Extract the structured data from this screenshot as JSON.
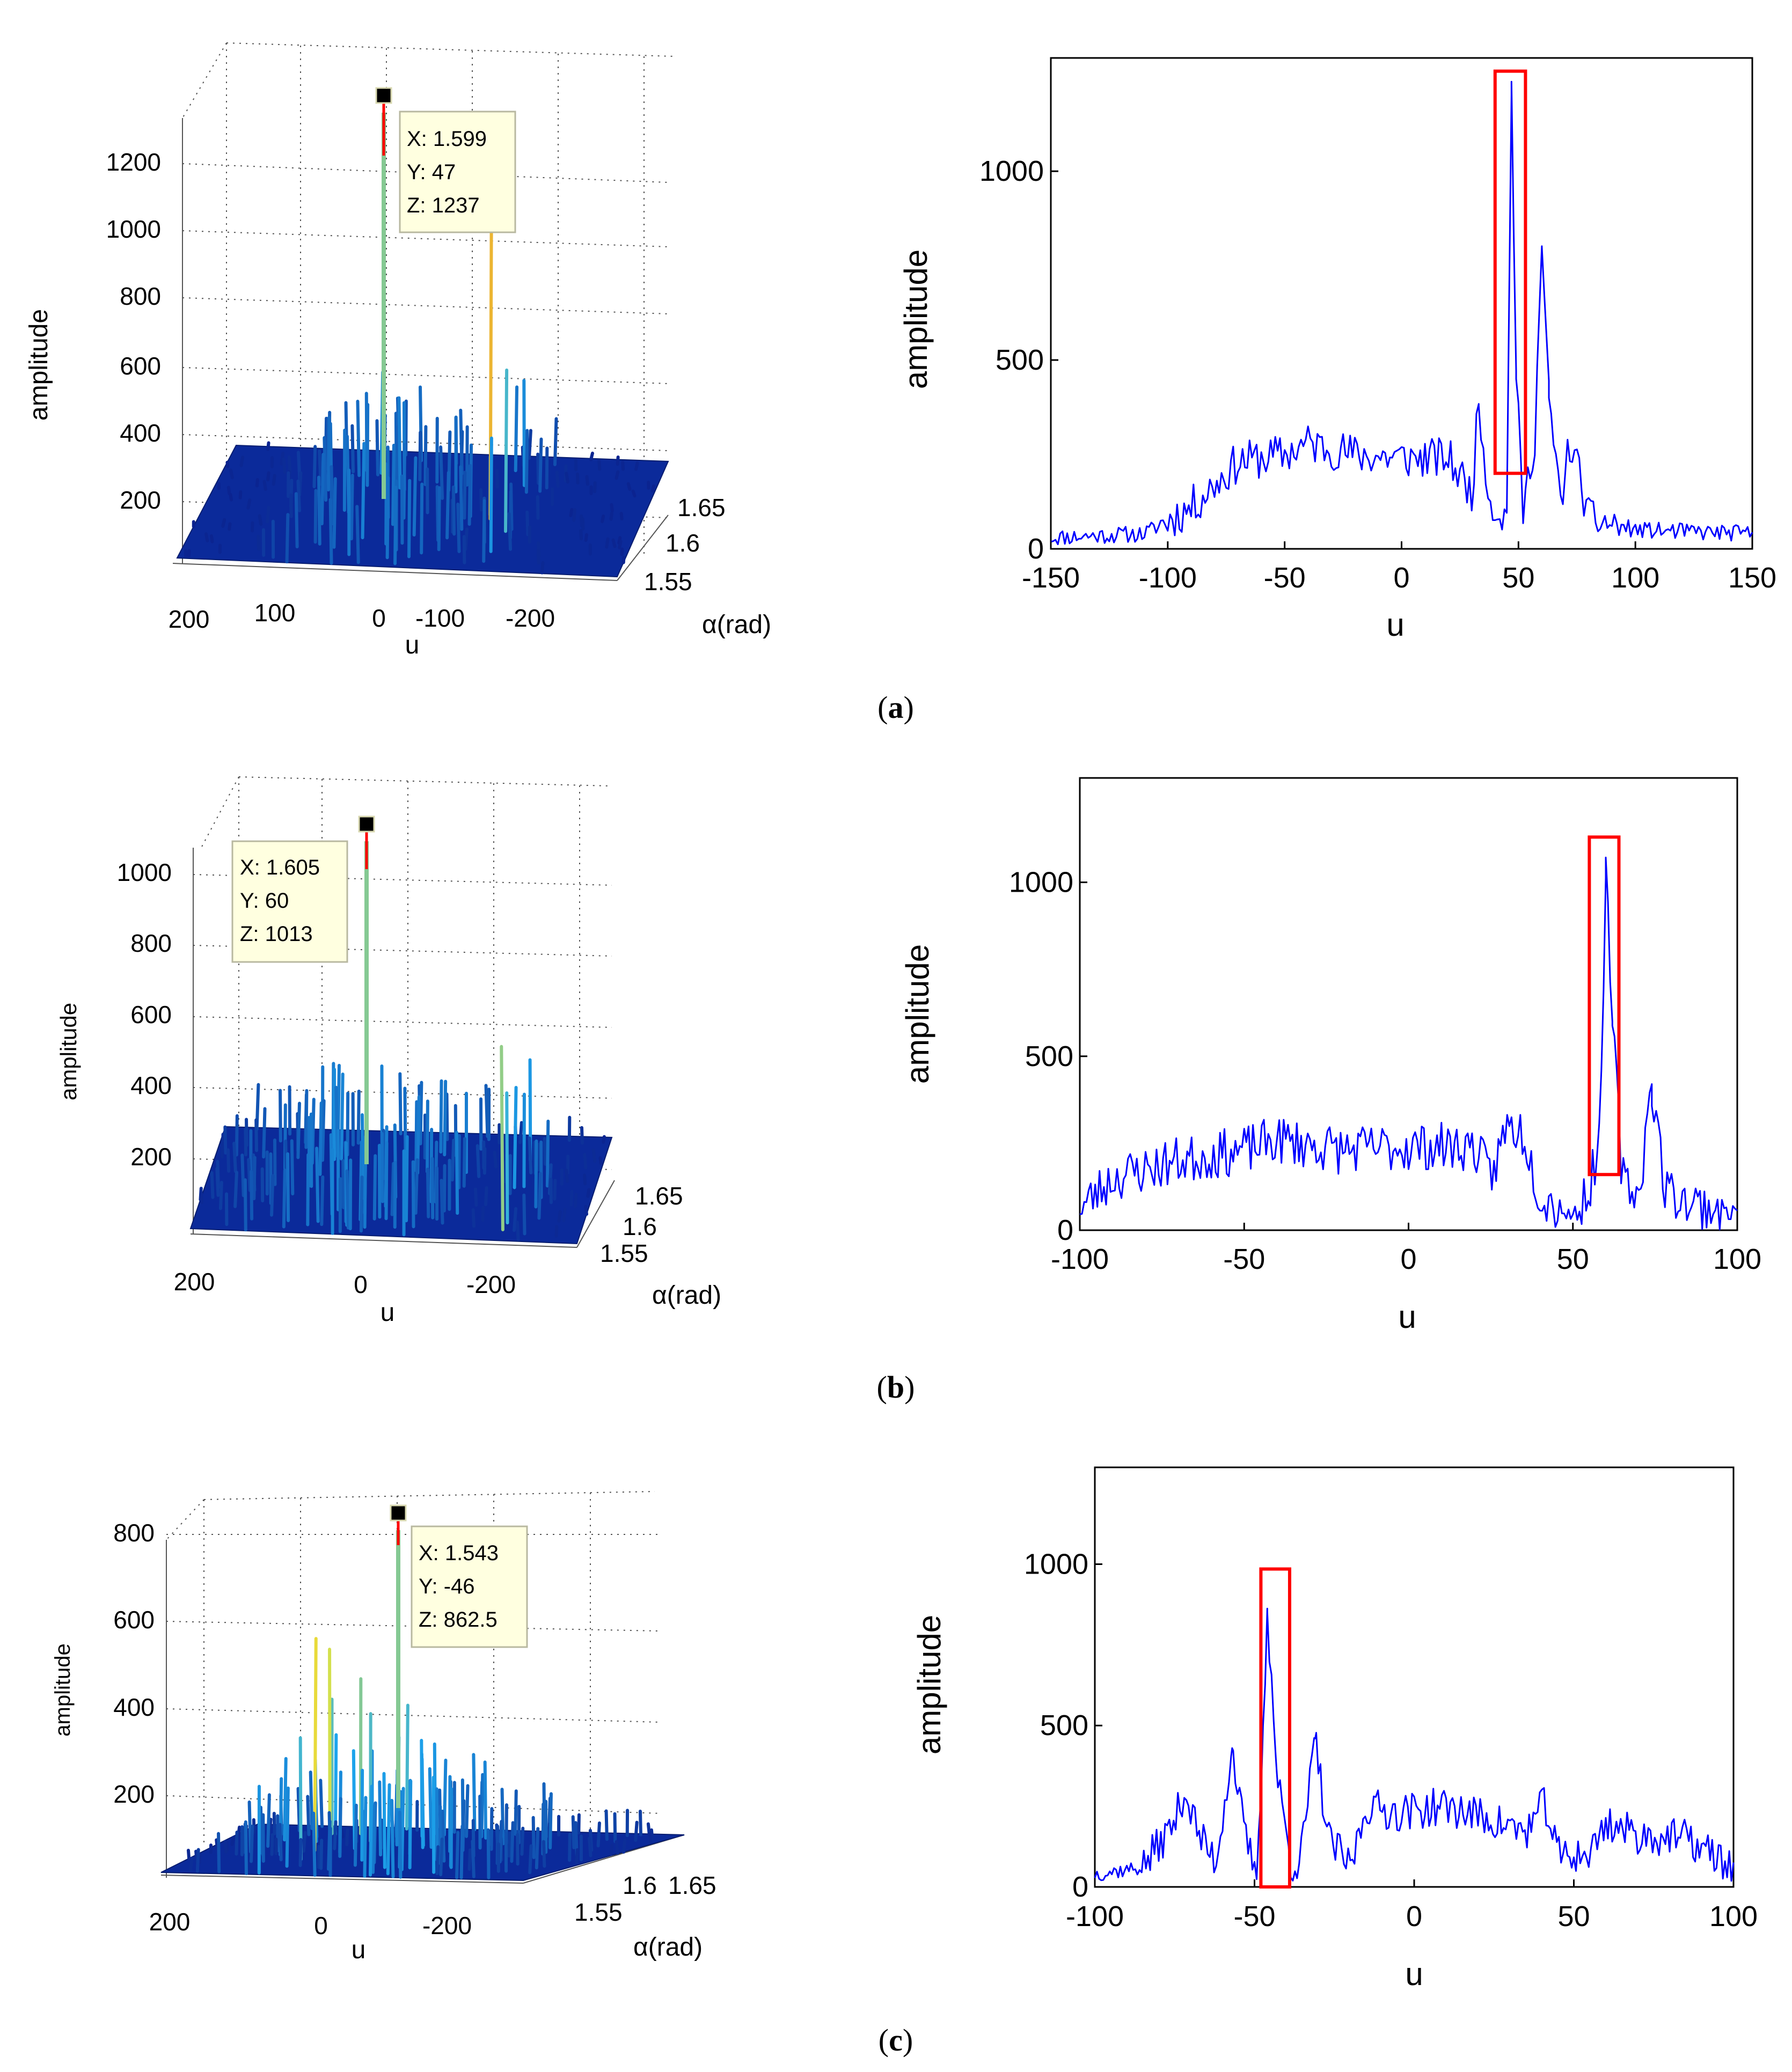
{
  "panels": [
    {
      "caption_letter": "a",
      "surface": {
        "type": "surface3d",
        "zlabel": "amplitude",
        "xlabel": "u",
        "ylabel": "α(rad)",
        "zticks": [
          "1200",
          "1000",
          "800",
          "600",
          "400",
          "200"
        ],
        "uticks": [
          "200",
          "100",
          "0",
          "-100",
          "-200"
        ],
        "alphaticks": [
          "1.65",
          "1.6",
          "1.55"
        ],
        "datatip": {
          "x": "X: 1.599",
          "y": "Y: 47",
          "z": "Z: 1237"
        },
        "peak_z": 1237,
        "zmax": 1300
      },
      "profile": {
        "type": "line",
        "xlabel": "u",
        "ylabel": "amplitude",
        "xlim": [
          -150,
          150
        ],
        "ylim": [
          0,
          1300
        ],
        "xticks": [
          "-150",
          "-100",
          "-50",
          "0",
          "50",
          "100",
          "150"
        ],
        "yticks": [
          "0",
          "500",
          "1000"
        ],
        "line_color": "#0000ff",
        "highlight_color": "#ff0000",
        "highlight": {
          "u0": 40,
          "u1": 53,
          "a0": 200,
          "a1": 1265
        },
        "envelope": [
          [
            -150,
            30
          ],
          [
            -110,
            40
          ],
          [
            -90,
            110
          ],
          [
            -70,
            230
          ],
          [
            -50,
            250
          ],
          [
            -40,
            280
          ],
          [
            -20,
            250
          ],
          [
            0,
            240
          ],
          [
            20,
            240
          ],
          [
            30,
            150
          ],
          [
            33,
            380
          ],
          [
            38,
            120
          ],
          [
            45,
            80
          ],
          [
            47,
            1237
          ],
          [
            49,
            450
          ],
          [
            52,
            100
          ],
          [
            57,
            300
          ],
          [
            60,
            800
          ],
          [
            63,
            400
          ],
          [
            68,
            120
          ],
          [
            72,
            280
          ],
          [
            76,
            200
          ],
          [
            80,
            80
          ],
          [
            100,
            50
          ],
          [
            150,
            40
          ]
        ],
        "noise": 55,
        "seed": 11
      }
    },
    {
      "caption_letter": "b",
      "surface": {
        "type": "surface3d",
        "zlabel": "amplitude",
        "xlabel": "u",
        "ylabel": "α(rad)",
        "zticks": [
          "1000",
          "800",
          "600",
          "400",
          "200"
        ],
        "uticks": [
          "200",
          "0",
          "-200"
        ],
        "alphaticks": [
          "1.65",
          "1.6",
          "1.55"
        ],
        "datatip": {
          "x": "X: 1.605",
          "y": "Y: 60",
          "z": "Z: 1013"
        },
        "peak_z": 1013,
        "zmax": 1100
      },
      "profile": {
        "type": "line",
        "xlabel": "u",
        "ylabel": "amplitude",
        "xlim": [
          -100,
          100
        ],
        "ylim": [
          0,
          1300
        ],
        "xticks": [
          "-100",
          "-50",
          "0",
          "50",
          "100"
        ],
        "yticks": [
          "0",
          "500",
          "1000"
        ],
        "line_color": "#0000ff",
        "highlight_color": "#ff0000",
        "highlight": {
          "u0": 55,
          "u1": 64,
          "a0": 160,
          "a1": 1130
        },
        "envelope": [
          [
            -100,
            60
          ],
          [
            -90,
            150
          ],
          [
            -70,
            200
          ],
          [
            -50,
            230
          ],
          [
            -40,
            260
          ],
          [
            -20,
            230
          ],
          [
            0,
            240
          ],
          [
            20,
            240
          ],
          [
            25,
            150
          ],
          [
            30,
            300
          ],
          [
            35,
            280
          ],
          [
            40,
            100
          ],
          [
            50,
            40
          ],
          [
            55,
            120
          ],
          [
            58,
            250
          ],
          [
            60,
            1013
          ],
          [
            62,
            600
          ],
          [
            65,
            150
          ],
          [
            70,
            100
          ],
          [
            74,
            420
          ],
          [
            78,
            120
          ],
          [
            85,
            80
          ],
          [
            100,
            50
          ]
        ],
        "noise": 70,
        "seed": 23
      }
    },
    {
      "caption_letter": "c",
      "surface": {
        "type": "surface3d",
        "zlabel": "amplitude",
        "xlabel": "u",
        "ylabel": "α(rad)",
        "zticks": [
          "800",
          "600",
          "400",
          "200"
        ],
        "uticks": [
          "200",
          "0",
          "-200"
        ],
        "alphaticks": [
          "1.65",
          "1.6",
          "1.55"
        ],
        "datatip": {
          "x": "X: 1.543",
          "y": "Y: -46",
          "z": "Z: 862.5"
        },
        "peak_z": 862.5,
        "zmax": 900
      },
      "profile": {
        "type": "line",
        "xlabel": "u",
        "ylabel": "amplitude",
        "xlim": [
          -100,
          100
        ],
        "ylim": [
          0,
          1300
        ],
        "xticks": [
          "-100",
          "-50",
          "0",
          "50",
          "100"
        ],
        "yticks": [
          "0",
          "500",
          "1000"
        ],
        "line_color": "#0000ff",
        "highlight_color": "#ff0000",
        "highlight": {
          "u0": -48,
          "u1": -39,
          "a0": 0,
          "a1": 985
        },
        "envelope": [
          [
            -100,
            40
          ],
          [
            -85,
            60
          ],
          [
            -75,
            200
          ],
          [
            -72,
            300
          ],
          [
            -67,
            150
          ],
          [
            -62,
            80
          ],
          [
            -57,
            430
          ],
          [
            -53,
            150
          ],
          [
            -49,
            30
          ],
          [
            -46,
            862.5
          ],
          [
            -43,
            350
          ],
          [
            -38,
            40
          ],
          [
            -35,
            120
          ],
          [
            -31,
            460
          ],
          [
            -27,
            150
          ],
          [
            -20,
            60
          ],
          [
            -15,
            250
          ],
          [
            -5,
            230
          ],
          [
            10,
            250
          ],
          [
            20,
            220
          ],
          [
            35,
            170
          ],
          [
            41,
            260
          ],
          [
            45,
            100
          ],
          [
            55,
            100
          ],
          [
            60,
            200
          ],
          [
            70,
            160
          ],
          [
            85,
            150
          ],
          [
            100,
            60
          ]
        ],
        "noise": 60,
        "seed": 37
      }
    }
  ]
}
